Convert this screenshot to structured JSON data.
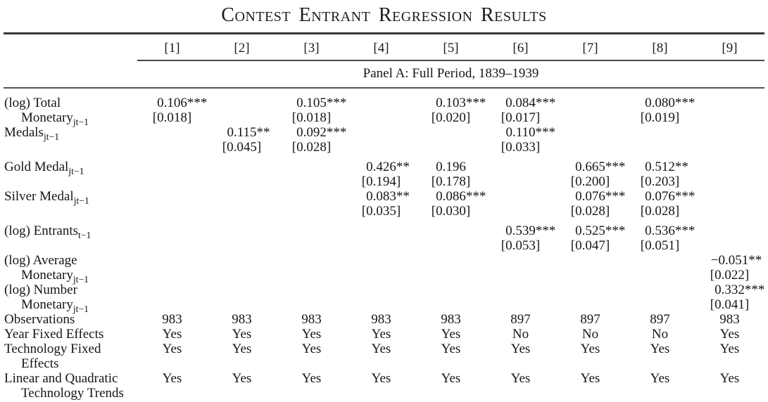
{
  "title": "Contest Entrant Regression Results",
  "header": {
    "columns": [
      "[1]",
      "[2]",
      "[3]",
      "[4]",
      "[5]",
      "[6]",
      "[7]",
      "[8]",
      "[9]"
    ],
    "panel": "Panel A: Full Period, 1839–1939"
  },
  "rows": [
    {
      "kind": "coef",
      "gap": false,
      "label": [
        "(log) Total",
        "Monetary_{jt−1}"
      ],
      "coef": [
        "0.106***",
        "",
        "0.105***",
        "",
        "0.103***",
        "0.084***",
        "",
        "0.080***",
        ""
      ],
      "se": [
        "[0.018]",
        "",
        "[0.018]",
        "",
        "[0.020]",
        "[0.017]",
        "",
        "[0.019]",
        ""
      ]
    },
    {
      "kind": "coef",
      "gap": false,
      "label": [
        "Medals_{jt−1}",
        ""
      ],
      "coef": [
        "",
        "0.115**",
        "0.092***",
        "",
        "",
        "0.110***",
        "",
        "",
        ""
      ],
      "se": [
        "",
        "[0.045]",
        "[0.028]",
        "",
        "",
        "[0.033]",
        "",
        "",
        ""
      ]
    },
    {
      "kind": "coef",
      "gap": true,
      "label": [
        "Gold Medal_{jt−1}",
        ""
      ],
      "coef": [
        "",
        "",
        "",
        "0.426**",
        "0.196",
        "",
        "0.665***",
        "0.512**",
        ""
      ],
      "se": [
        "",
        "",
        "",
        "[0.194]",
        "[0.178]",
        "",
        "[0.200]",
        "[0.203]",
        ""
      ]
    },
    {
      "kind": "coef",
      "gap": false,
      "label": [
        "Silver Medal_{jt−1}",
        ""
      ],
      "coef": [
        "",
        "",
        "",
        "0.083**",
        "0.086***",
        "",
        "0.076***",
        "0.076***",
        ""
      ],
      "se": [
        "",
        "",
        "",
        "[0.035]",
        "[0.030]",
        "",
        "[0.028]",
        "[0.028]",
        ""
      ]
    },
    {
      "kind": "coef",
      "gap": true,
      "label": [
        "(log) Entrants_{t−1}",
        ""
      ],
      "coef": [
        "",
        "",
        "",
        "",
        "",
        "0.539***",
        "0.525***",
        "0.536***",
        ""
      ],
      "se": [
        "",
        "",
        "",
        "",
        "",
        "[0.053]",
        "[0.047]",
        "[0.051]",
        ""
      ]
    },
    {
      "kind": "coef",
      "gap": false,
      "label": [
        "(log) Average",
        "Monetary_{jt−1}"
      ],
      "coef": [
        "",
        "",
        "",
        "",
        "",
        "",
        "",
        "",
        "−0.051**"
      ],
      "se": [
        "",
        "",
        "",
        "",
        "",
        "",
        "",
        "",
        "[0.022]"
      ]
    },
    {
      "kind": "coef",
      "gap": false,
      "label": [
        "(log) Number",
        "Monetary_{jt−1}"
      ],
      "coef": [
        "",
        "",
        "",
        "",
        "",
        "",
        "",
        "",
        "0.332***"
      ],
      "se": [
        "",
        "",
        "",
        "",
        "",
        "",
        "",
        "",
        "[0.041]"
      ]
    },
    {
      "kind": "plain",
      "label": [
        "Observations",
        ""
      ],
      "values": [
        "983",
        "983",
        "983",
        "983",
        "983",
        "897",
        "897",
        "897",
        "983"
      ]
    },
    {
      "kind": "plain",
      "label": [
        "Year Fixed Effects",
        ""
      ],
      "values": [
        "Yes",
        "Yes",
        "Yes",
        "Yes",
        "Yes",
        "No",
        "No",
        "No",
        "Yes"
      ]
    },
    {
      "kind": "plain",
      "label": [
        "Technology Fixed",
        "Effects"
      ],
      "values": [
        "Yes",
        "Yes",
        "Yes",
        "Yes",
        "Yes",
        "Yes",
        "Yes",
        "Yes",
        "Yes"
      ]
    },
    {
      "kind": "plain",
      "label": [
        "Linear and Quadratic",
        "Technology Trends"
      ],
      "values": [
        "Yes",
        "Yes",
        "Yes",
        "Yes",
        "Yes",
        "Yes",
        "Yes",
        "Yes",
        "Yes"
      ]
    }
  ]
}
